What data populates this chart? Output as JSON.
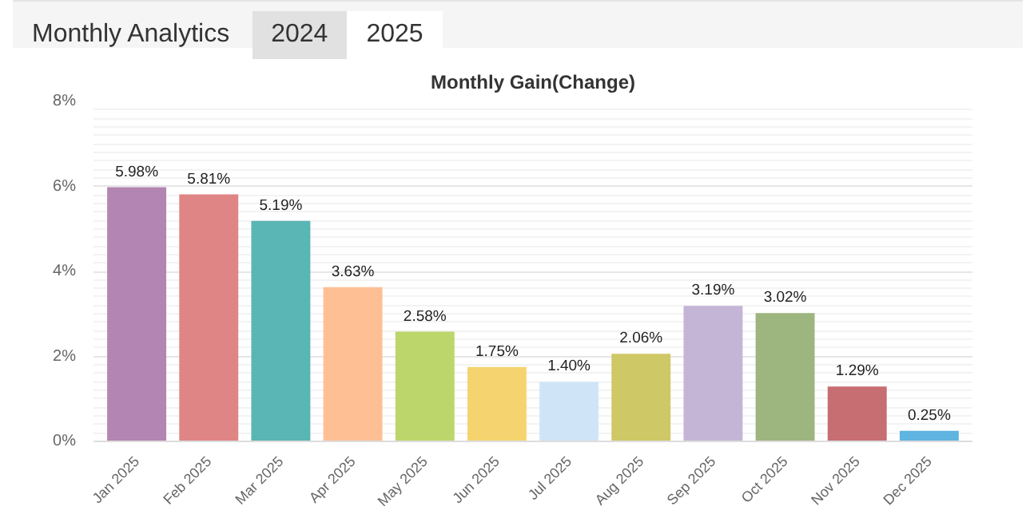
{
  "chart_data": {
    "type": "bar",
    "title": "Monthly Gain(Change)",
    "annotations": [
      "Monthly Analytics",
      "2024",
      "2025"
    ],
    "categories": [
      "Jan 2025",
      "Feb 2025",
      "Mar 2025",
      "Apr 2025",
      "May 2025",
      "Jun 2025",
      "Jul 2025",
      "Aug 2025",
      "Sep 2025",
      "Oct 2025",
      "Nov 2025",
      "Dec 2025"
    ],
    "values": [
      5.98,
      5.81,
      5.19,
      3.63,
      2.58,
      1.75,
      1.4,
      2.06,
      3.19,
      3.02,
      1.29,
      0.25
    ],
    "value_labels": [
      "5.98%",
      "5.81%",
      "5.19%",
      "3.63%",
      "2.58%",
      "1.75%",
      "1.40%",
      "2.06%",
      "3.19%",
      "3.02%",
      "1.29%",
      "0.25%"
    ],
    "colors": [
      "#b385b3",
      "#e08585",
      "#5ab5b5",
      "#ffbf94",
      "#bcd66b",
      "#f5d470",
      "#cfe5f7",
      "#cfc866",
      "#c4b5d6",
      "#9db57f",
      "#c76e72",
      "#5fb4e0"
    ],
    "ylim": [
      0,
      8
    ],
    "yticks": [
      {
        "value": 0,
        "label": "0%"
      },
      {
        "value": 2,
        "label": "2%"
      },
      {
        "value": 4,
        "label": "4%"
      },
      {
        "value": 6,
        "label": "6%"
      },
      {
        "value": 8,
        "label": "8%"
      }
    ],
    "grid": "y"
  }
}
